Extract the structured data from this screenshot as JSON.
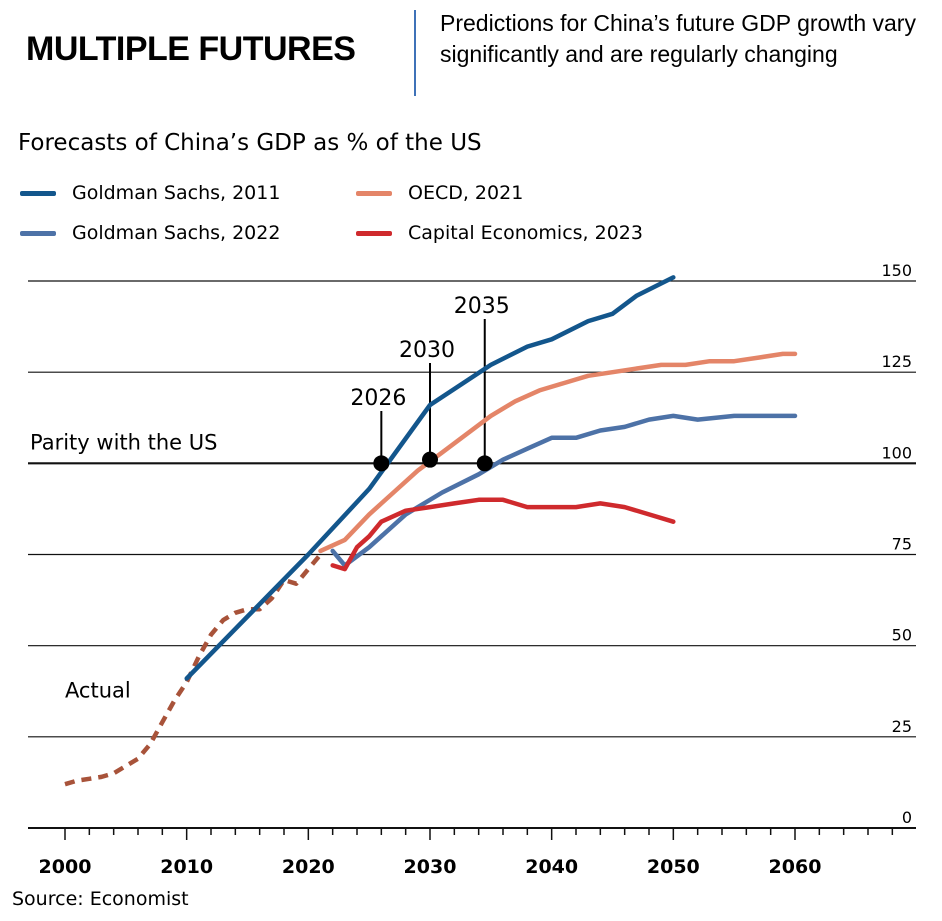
{
  "header": {
    "title": "MULTIPLE FUTURES",
    "subtitle": "Predictions for China’s future GDP growth vary significantly and are regularly changing"
  },
  "source": "Source: Economist",
  "colors": {
    "gs2011": "#13568c",
    "gs2022": "#4d72a7",
    "oecd2021": "#e48568",
    "ce2023": "#cf2a2d",
    "actual": "#a8533a"
  },
  "chart_data": {
    "type": "line",
    "title": "Forecasts of China’s GDP as % of the US",
    "xlabel": "",
    "ylabel": "",
    "xlim": [
      1997,
      2070
    ],
    "ylim": [
      -3,
      153
    ],
    "x_ticks": [
      2000,
      2010,
      2020,
      2030,
      2040,
      2050,
      2060
    ],
    "y_ticks": [
      0,
      25,
      50,
      75,
      100,
      125,
      150
    ],
    "grid": true,
    "legend_position": "top-left",
    "reference_line": {
      "y": 100,
      "label": "Parity with the US"
    },
    "series": [
      {
        "name": "Actual",
        "key": "actual",
        "style": "dashed",
        "points": [
          [
            2000,
            12
          ],
          [
            2001,
            13
          ],
          [
            2002,
            13.5
          ],
          [
            2003,
            14
          ],
          [
            2004,
            15
          ],
          [
            2005,
            17
          ],
          [
            2006,
            19
          ],
          [
            2007,
            23
          ],
          [
            2008,
            29
          ],
          [
            2009,
            35
          ],
          [
            2010,
            40
          ],
          [
            2011,
            47
          ],
          [
            2012,
            53
          ],
          [
            2013,
            57
          ],
          [
            2014,
            59
          ],
          [
            2015,
            60
          ],
          [
            2016,
            60
          ],
          [
            2017,
            63
          ],
          [
            2018,
            68
          ],
          [
            2019,
            67
          ],
          [
            2020,
            71
          ],
          [
            2021,
            75
          ]
        ]
      },
      {
        "name": "Goldman Sachs, 2011",
        "key": "gs2011",
        "points": [
          [
            2010,
            41
          ],
          [
            2015,
            58
          ],
          [
            2020,
            75
          ],
          [
            2025,
            93
          ],
          [
            2030,
            116
          ],
          [
            2035,
            127
          ],
          [
            2038,
            132
          ],
          [
            2040,
            134
          ],
          [
            2043,
            139
          ],
          [
            2045,
            141
          ],
          [
            2047,
            146
          ],
          [
            2050,
            151
          ]
        ]
      },
      {
        "name": "Goldman Sachs, 2022",
        "key": "gs2022",
        "points": [
          [
            2022,
            76
          ],
          [
            2023,
            72
          ],
          [
            2025,
            77
          ],
          [
            2028,
            86
          ],
          [
            2031,
            92
          ],
          [
            2034,
            97
          ],
          [
            2036,
            101
          ],
          [
            2038,
            104
          ],
          [
            2040,
            107
          ],
          [
            2042,
            107
          ],
          [
            2044,
            109
          ],
          [
            2046,
            110
          ],
          [
            2048,
            112
          ],
          [
            2050,
            113
          ],
          [
            2052,
            112
          ],
          [
            2055,
            113
          ],
          [
            2058,
            113
          ],
          [
            2060,
            113
          ]
        ]
      },
      {
        "name": "OECD, 2021",
        "key": "oecd2021",
        "points": [
          [
            2021,
            76
          ],
          [
            2023,
            79
          ],
          [
            2025,
            86
          ],
          [
            2027,
            92
          ],
          [
            2029,
            98
          ],
          [
            2031,
            103
          ],
          [
            2033,
            108
          ],
          [
            2035,
            113
          ],
          [
            2037,
            117
          ],
          [
            2039,
            120
          ],
          [
            2041,
            122
          ],
          [
            2043,
            124
          ],
          [
            2045,
            125
          ],
          [
            2047,
            126
          ],
          [
            2049,
            127
          ],
          [
            2051,
            127
          ],
          [
            2053,
            128
          ],
          [
            2055,
            128
          ],
          [
            2057,
            129
          ],
          [
            2059,
            130
          ],
          [
            2060,
            130
          ]
        ]
      },
      {
        "name": "Capital Economics, 2023",
        "key": "ce2023",
        "points": [
          [
            2022,
            72
          ],
          [
            2023,
            71
          ],
          [
            2024,
            77
          ],
          [
            2025,
            80
          ],
          [
            2026,
            84
          ],
          [
            2028,
            87
          ],
          [
            2030,
            88
          ],
          [
            2032,
            89
          ],
          [
            2034,
            90
          ],
          [
            2036,
            90
          ],
          [
            2038,
            88
          ],
          [
            2040,
            88
          ],
          [
            2042,
            88
          ],
          [
            2044,
            89
          ],
          [
            2046,
            88
          ],
          [
            2048,
            86
          ],
          [
            2050,
            84
          ]
        ]
      }
    ],
    "annotations": [
      {
        "label": "2026",
        "x": 2026,
        "y": 100
      },
      {
        "label": "2030",
        "x": 2030,
        "y": 101
      },
      {
        "label": "2035",
        "x": 2034.5,
        "y": 100
      },
      {
        "label": "Actual",
        "x": 2002.7,
        "y": 38
      }
    ]
  }
}
